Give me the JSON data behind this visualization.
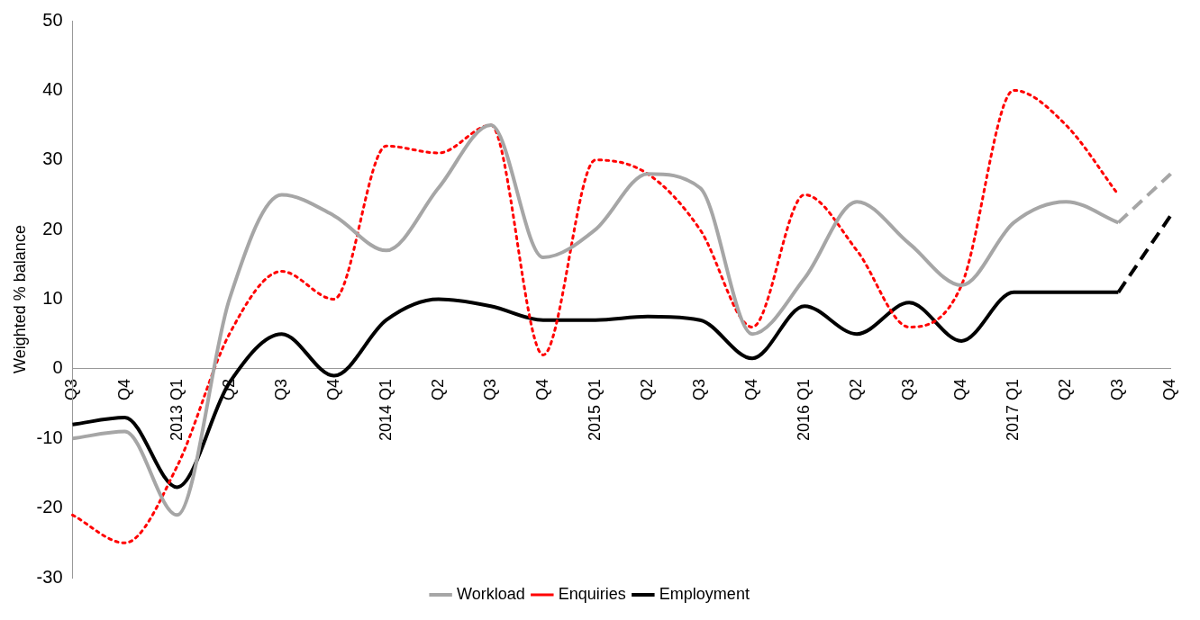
{
  "chart_data": {
    "type": "line",
    "ylabel": "Weighted % balance",
    "categories": [
      "Q3",
      "Q4",
      "2013 Q1",
      "Q2",
      "Q3",
      "Q4",
      "2014 Q1",
      "Q2",
      "Q3",
      "Q4",
      "2015 Q1",
      "Q2",
      "Q3",
      "Q4",
      "2016 Q1",
      "Q2",
      "Q3",
      "Q4",
      "2017 Q1",
      "Q2",
      "Q3",
      "Q4"
    ],
    "series": [
      {
        "name": "Workload",
        "color": "#a6a6a6",
        "line_style": "solid",
        "values": [
          -10,
          -9,
          -21,
          10,
          25,
          22,
          17,
          26,
          35,
          16,
          20,
          28,
          26,
          5,
          13,
          24,
          18,
          12,
          21,
          24,
          21,
          null
        ]
      },
      {
        "name": "Enquiries",
        "color": "#ff0000",
        "line_style": "dotted",
        "values": [
          -21,
          -25,
          -14,
          5,
          14,
          10,
          32,
          31,
          35,
          2,
          30,
          28,
          20,
          6,
          25,
          17,
          6,
          12,
          40,
          35,
          25,
          null
        ]
      },
      {
        "name": "Employment",
        "color": "#000000",
        "line_style": "solid",
        "values": [
          -8,
          -7,
          -17,
          -2,
          5,
          -1,
          7,
          10,
          9,
          7,
          7,
          7.5,
          7,
          1.5,
          9,
          5,
          9.5,
          4,
          11,
          11,
          11,
          null
        ]
      },
      {
        "color": "#a6a6a6",
        "line_style": "dashed",
        "values": [
          null,
          null,
          null,
          null,
          null,
          null,
          null,
          null,
          null,
          null,
          null,
          null,
          null,
          null,
          null,
          null,
          null,
          null,
          null,
          null,
          21,
          28
        ]
      },
      {
        "color": "#000000",
        "line_style": "dashed",
        "values": [
          null,
          null,
          null,
          null,
          null,
          null,
          null,
          null,
          null,
          null,
          null,
          null,
          null,
          null,
          null,
          null,
          null,
          null,
          null,
          null,
          11,
          22
        ]
      }
    ],
    "ylim": [
      -30,
      50
    ],
    "yticks": [
      -30,
      -20,
      -10,
      0,
      10,
      20,
      30,
      40,
      50
    ],
    "grid": false,
    "legend": "bottom"
  }
}
